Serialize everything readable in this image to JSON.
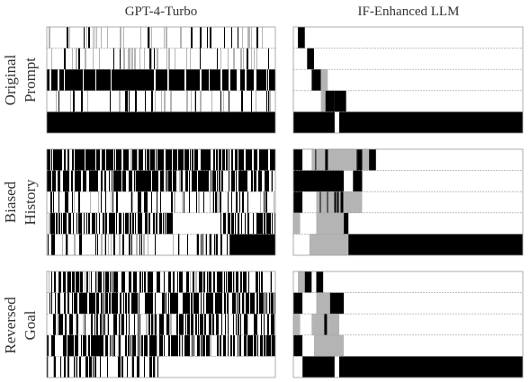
{
  "column_titles": [
    "GPT-4-Turbo",
    "IF-Enhanced LLM"
  ],
  "row_labels": [
    [
      "Original",
      "Prompt"
    ],
    [
      "Biased",
      "History"
    ],
    [
      "Reversed",
      "Goal"
    ]
  ],
  "colors": {
    "black": "#000000",
    "gray": "#b4b4b4",
    "white": "#ffffff",
    "frame": "#999999"
  },
  "chart_data": {
    "type": "heatmap",
    "description_of_encoding": "Each strip is a timeline; bands mark state black, gray or white, as fractions 0-1 of strip length.",
    "panels": [
      {
        "row": "Original Prompt",
        "column": "GPT-4-Turbo",
        "strips": [
          {
            "noise": {
              "density": 0.06,
              "gray": 0.1,
              "seed": 11
            }
          },
          {
            "noise": {
              "density": 0.05,
              "gray": 0.15,
              "seed": 12
            }
          },
          {
            "noise": {
              "density": 0.88,
              "gray": 0.05,
              "seed": 13
            }
          },
          {
            "noise": {
              "density": 0.08,
              "gray": 0.1,
              "seed": 14
            }
          },
          {
            "bands": [
              [
                0.0,
                1.0,
                "k"
              ]
            ],
            "noise": {
              "density": 0.02,
              "gray": 0.0,
              "seed": 15
            }
          }
        ]
      },
      {
        "row": "Original Prompt",
        "column": "IF-Enhanced LLM",
        "strips": [
          {
            "bands": [
              [
                0.02,
                0.05,
                "k"
              ]
            ]
          },
          {
            "bands": [
              [
                0.06,
                0.09,
                "k"
              ]
            ]
          },
          {
            "bands": [
              [
                0.08,
                0.12,
                "k"
              ],
              [
                0.12,
                0.15,
                "g"
              ]
            ]
          },
          {
            "bands": [
              [
                0.12,
                0.14,
                "g"
              ],
              [
                0.14,
                0.18,
                "k"
              ],
              [
                0.18,
                0.23,
                "k"
              ]
            ]
          },
          {
            "bands": [
              [
                0.0,
                1.0,
                "k"
              ],
              [
                0.18,
                0.2,
                "w"
              ]
            ]
          }
        ]
      },
      {
        "row": "Biased History",
        "column": "GPT-4-Turbo",
        "strips": [
          {
            "noise": {
              "density": 0.72,
              "gray": 0.08,
              "seed": 21
            }
          },
          {
            "noise": {
              "density": 0.68,
              "gray": 0.08,
              "seed": 22
            }
          },
          {
            "noise": {
              "density": 0.2,
              "gray": 0.08,
              "seed": 23
            }
          },
          {
            "noise": {
              "density": 0.55,
              "gray": 0.08,
              "seed": 24
            },
            "bands": [
              [
                0.55,
                0.75,
                "w"
              ]
            ]
          },
          {
            "noise": {
              "density": 0.18,
              "gray": 0.1,
              "seed": 25
            },
            "bands": [
              [
                0.8,
                1.0,
                "k"
              ]
            ]
          }
        ]
      },
      {
        "row": "Biased History",
        "column": "IF-Enhanced LLM",
        "strips": [
          {
            "bands": [
              [
                0.0,
                0.04,
                "k"
              ],
              [
                0.04,
                0.08,
                "w"
              ],
              [
                0.08,
                0.28,
                "g"
              ],
              [
                0.28,
                0.3,
                "k"
              ],
              [
                0.3,
                0.33,
                "g"
              ],
              [
                0.33,
                0.36,
                "k"
              ]
            ],
            "noise": {
              "density": 0.1,
              "gray": 0.3,
              "seed": 31,
              "range": [
                0.08,
                0.28
              ]
            }
          },
          {
            "bands": [
              [
                0.0,
                0.22,
                "k"
              ],
              [
                0.22,
                0.26,
                "w"
              ],
              [
                0.26,
                0.3,
                "k"
              ]
            ]
          },
          {
            "bands": [
              [
                0.0,
                0.04,
                "k"
              ],
              [
                0.04,
                0.1,
                "w"
              ],
              [
                0.1,
                0.3,
                "g"
              ]
            ],
            "noise": {
              "density": 0.1,
              "gray": 0.3,
              "seed": 32,
              "range": [
                0.1,
                0.3
              ]
            }
          },
          {
            "bands": [
              [
                0.0,
                0.03,
                "g"
              ],
              [
                0.03,
                0.1,
                "w"
              ],
              [
                0.1,
                0.22,
                "g"
              ],
              [
                0.22,
                0.24,
                "k"
              ]
            ]
          },
          {
            "bands": [
              [
                0.0,
                0.07,
                "w"
              ],
              [
                0.07,
                0.24,
                "g"
              ],
              [
                0.24,
                1.0,
                "k"
              ]
            ]
          }
        ]
      },
      {
        "row": "Reversed Goal",
        "column": "GPT-4-Turbo",
        "strips": [
          {
            "noise": {
              "density": 0.55,
              "gray": 0.08,
              "seed": 41
            }
          },
          {
            "noise": {
              "density": 0.62,
              "gray": 0.08,
              "seed": 42
            }
          },
          {
            "noise": {
              "density": 0.4,
              "gray": 0.1,
              "seed": 43
            }
          },
          {
            "noise": {
              "density": 0.55,
              "gray": 0.08,
              "seed": 44
            }
          },
          {
            "noise": {
              "density": 0.35,
              "gray": 0.1,
              "seed": 45
            },
            "bands": [
              [
                0.5,
                1.0,
                "w"
              ]
            ]
          }
        ]
      },
      {
        "row": "Reversed Goal",
        "column": "IF-Enhanced LLM",
        "strips": [
          {
            "bands": [
              [
                0.02,
                0.05,
                "g"
              ],
              [
                0.05,
                0.08,
                "k"
              ],
              [
                0.08,
                0.1,
                "w"
              ],
              [
                0.1,
                0.13,
                "k"
              ]
            ]
          },
          {
            "bands": [
              [
                0.0,
                0.04,
                "k"
              ],
              [
                0.04,
                0.1,
                "w"
              ],
              [
                0.1,
                0.16,
                "g"
              ],
              [
                0.16,
                0.22,
                "k"
              ]
            ]
          },
          {
            "bands": [
              [
                0.0,
                0.03,
                "g"
              ],
              [
                0.03,
                0.08,
                "w"
              ],
              [
                0.08,
                0.2,
                "g"
              ]
            ],
            "noise": {
              "density": 0.1,
              "gray": 0.3,
              "seed": 51,
              "range": [
                0.08,
                0.2
              ]
            }
          },
          {
            "bands": [
              [
                0.0,
                0.04,
                "k"
              ],
              [
                0.04,
                0.09,
                "w"
              ],
              [
                0.09,
                0.22,
                "g"
              ]
            ]
          },
          {
            "bands": [
              [
                0.0,
                0.04,
                "w"
              ],
              [
                0.04,
                0.18,
                "k"
              ],
              [
                0.18,
                0.2,
                "w"
              ],
              [
                0.2,
                1.0,
                "k"
              ]
            ]
          }
        ]
      }
    ]
  }
}
